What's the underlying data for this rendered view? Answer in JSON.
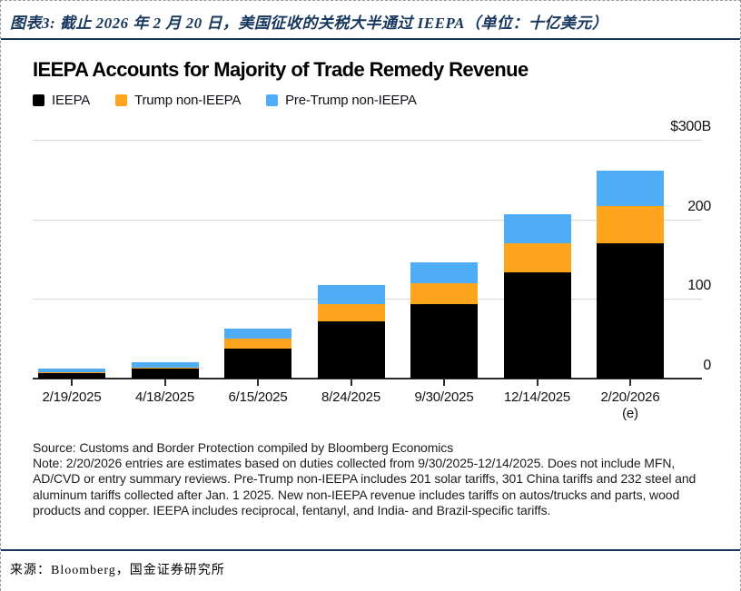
{
  "page": {
    "figure_caption": "图表3: 截止 2026 年 2 月 20 日，美国征收的关税大半通过 IEEPA（单位：十亿美元）",
    "footer_source": "来源：Bloomberg，国金证券研究所"
  },
  "chart": {
    "title": "IEEPA Accounts for Majority of Trade Remedy Revenue",
    "source_line": "Source: Customs and Border Protection compiled by Bloomberg Economics",
    "note_line": "Note: 2/20/2026 entries are estimates based on duties collected from 9/30/2025-12/14/2025. Does not include MFN, AD/CVD or entry summary reviews. Pre-Trump non-IEEPA includes 201 solar tariffs, 301 China tariffs and 232 steel and aluminum tariffs collected after Jan. 1 2025. New non-IEEPA revenue includes tariffs on autos/trucks and parts, wood products and copper. IEEPA includes reciprocal, fentanyl, and India- and Brazil-specific tariffs."
  },
  "chart_data": {
    "type": "bar",
    "stacked": true,
    "title": "IEEPA Accounts for Majority of Trade Remedy Revenue",
    "unit": "billion USD",
    "categories": [
      "2/19/2025",
      "4/18/2025",
      "6/15/2025",
      "8/24/2025",
      "9/30/2025",
      "12/14/2025",
      "2/20/2026"
    ],
    "last_category_suffix": "(e)",
    "series": [
      {
        "name": "IEEPA",
        "color": "#000000",
        "values": [
          7,
          12,
          38,
          72,
          93,
          133,
          170
        ]
      },
      {
        "name": "Trump non-IEEPA",
        "color": "#FFA41D",
        "values": [
          1,
          2,
          12,
          22,
          27,
          37,
          47
        ]
      },
      {
        "name": "Pre-Trump non-IEEPA",
        "color": "#4FADF7",
        "values": [
          5,
          6,
          13,
          23,
          26,
          37,
          44
        ]
      }
    ],
    "totals": [
      13,
      20,
      63,
      117,
      146,
      207,
      261
    ],
    "y_axis": {
      "ticks": [
        0,
        100,
        200
      ],
      "top_label": "$300B",
      "max": 300
    },
    "grid": "horizontal",
    "legend_position": "top-left"
  }
}
